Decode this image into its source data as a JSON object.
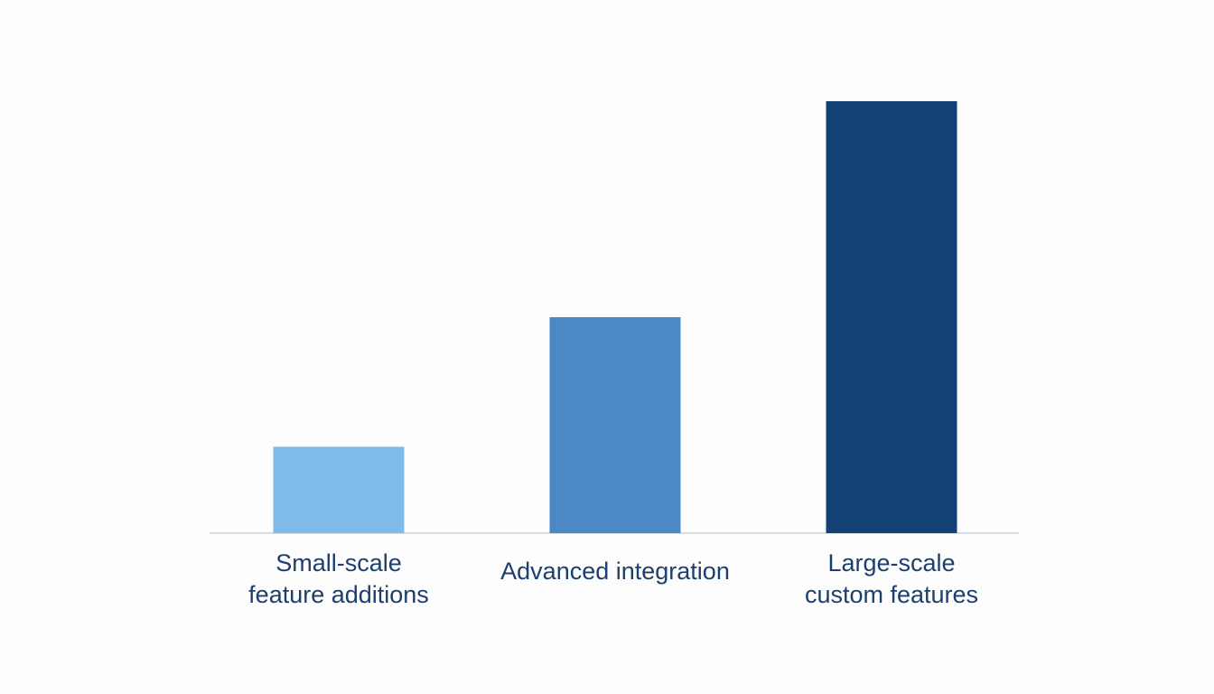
{
  "chart_data": {
    "type": "bar",
    "title": "",
    "xlabel": "",
    "ylabel": "",
    "categories": [
      [
        "Small-scale",
        "feature additions"
      ],
      [
        "Advanced integration"
      ],
      [
        "Large-scale",
        "custom features"
      ]
    ],
    "values": [
      1,
      2.5,
      5
    ],
    "ylim": [
      0,
      5
    ],
    "grid": false,
    "colors": [
      "#7fbbe9",
      "#4a89c6",
      "#144175"
    ],
    "label_color": "#1d3f6e",
    "baseline_color": "#d9dde3"
  }
}
